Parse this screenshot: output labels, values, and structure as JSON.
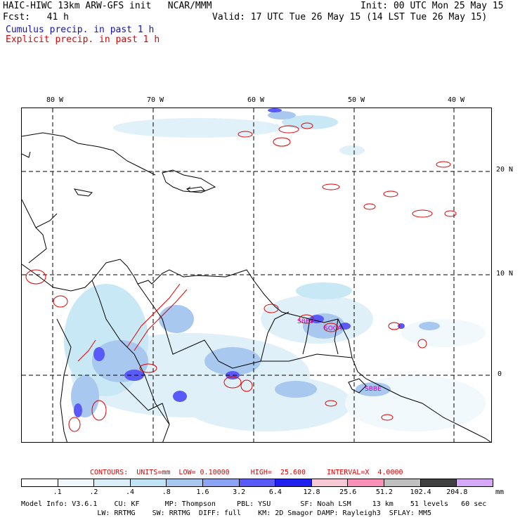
{
  "header": {
    "title_line": "HAIC-HIWC 13km ARW-GFS init   NCAR/MMM",
    "init": "Init: 00 UTC Mon 25 May 15",
    "fcst": "Fcst:   41 h",
    "valid": "Valid: 17 UTC Tue 26 May 15 (14 LST Tue 26 May 15)",
    "cumulus": "Cumulus precip. in past 1 h",
    "explicit": "Explicit precip. in past 1 h"
  },
  "map": {
    "lon_labels": [
      "80 W",
      "70 W",
      "60 W",
      "50 W",
      "40 W"
    ],
    "lat_labels": [
      "20 N",
      "10 N",
      "0"
    ],
    "stations": [
      "SBBV",
      "SOCA",
      "SBBE"
    ]
  },
  "contours": {
    "label": "CONTOURS:  UNITS=mm  LOW= 0.10000     HIGH=  25.600     INTERVAL=X  4.0000"
  },
  "legend": {
    "values": [
      ".1",
      ".2",
      ".4",
      ".8",
      "1.6",
      "3.2",
      "6.4",
      "12.8",
      "25.6",
      "51.2",
      "102.4",
      "204.8"
    ],
    "unit": "mm",
    "colors": [
      "#ffffff",
      "#f0f8fc",
      "#daeef8",
      "#c0e4f4",
      "#a8c8f0",
      "#8ca4f4",
      "#5a5af8",
      "#2020f0",
      "#f8c8d4",
      "#f890b8",
      "#c0c0c0",
      "#404040",
      "#d8a8f8"
    ]
  },
  "footer": {
    "line1": "Model Info: V3.6.1    CU: KF      MP: Thompson     PBL: YSU       SF: Noah LSM     13 km    51 levels   60 sec",
    "line2": "                  LW: RRTMG    SW: RRTMG  DIFF: full    KM: 2D Smagor DAMP: Rayleigh3  SFLAY: MM5"
  }
}
